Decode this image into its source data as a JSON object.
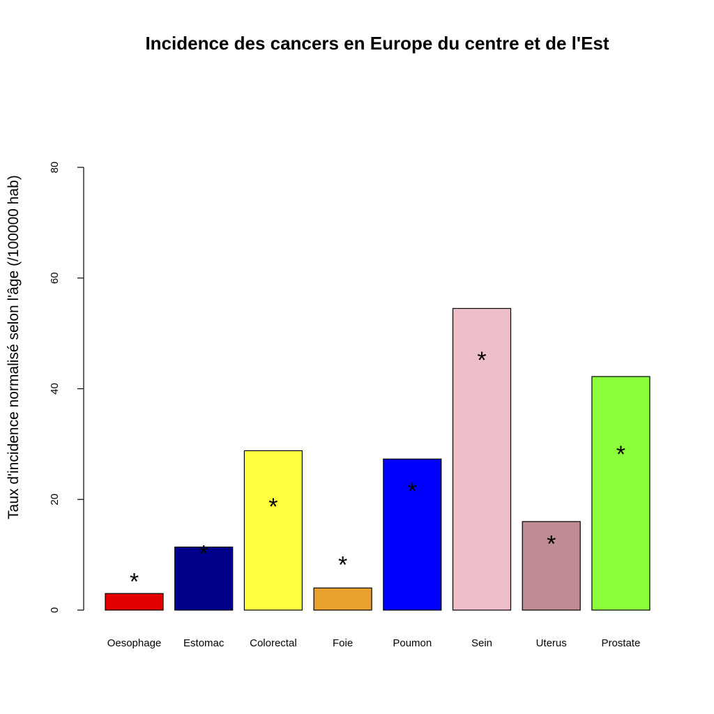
{
  "chart_data": {
    "type": "bar",
    "title": "Incidence des cancers en Europe du centre et de l'Est",
    "xlabel": "",
    "ylabel": "Taux d'incidence normalisé selon l'âge (/100000 hab)",
    "ylim": [
      0,
      80
    ],
    "yticks": [
      0,
      20,
      40,
      60,
      80
    ],
    "grid": false,
    "categories": [
      "Oesophage",
      "Estomac",
      "Colorectal",
      "Foie",
      "Poumon",
      "Sein",
      "Uterus",
      "Prostate"
    ],
    "values": [
      3.0,
      11.4,
      28.8,
      4.0,
      27.3,
      54.5,
      16.0,
      42.2
    ],
    "colors": [
      "#e30000",
      "#00008b",
      "#ffff40",
      "#e8a12a",
      "#0000ff",
      "#efbfc9",
      "#bf8c94",
      "#8cff3c"
    ],
    "markers": {
      "symbol": "*",
      "values": [
        6.0,
        11.0,
        19.5,
        9.0,
        22.3,
        46.0,
        12.8,
        29.0
      ]
    }
  }
}
